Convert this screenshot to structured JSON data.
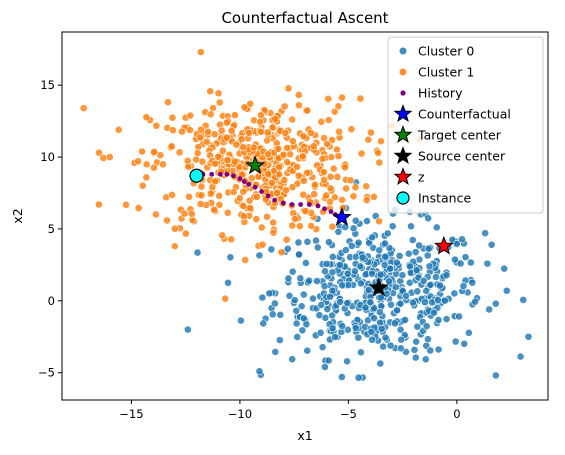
{
  "chart_data": {
    "type": "scatter",
    "title": "Counterfactual Ascent",
    "xlabel": "x1",
    "ylabel": "x2",
    "xlim": [
      -18.2,
      4.2
    ],
    "ylim": [
      -6.9,
      18.7
    ],
    "xticks": [
      -15,
      -10,
      -5,
      0
    ],
    "yticks": [
      -5,
      0,
      5,
      10,
      15
    ],
    "grid": false,
    "legend_position": "top-right",
    "series": [
      {
        "name": "Cluster 0",
        "kind": "cloud",
        "color": "#1f77b4",
        "center": [
          -3.6,
          0.7
        ],
        "spread": [
          2.4,
          2.3
        ],
        "count": 500,
        "outliers": [
          [
            -12.4,
            -2.0
          ],
          [
            -9.1,
            -4.9
          ],
          [
            3.3,
            -2.5
          ],
          [
            2.3,
            0.7
          ],
          [
            1.6,
            3.9
          ],
          [
            -5.3,
            -5.3
          ]
        ]
      },
      {
        "name": "Cluster 1",
        "kind": "cloud",
        "color": "#ff7f0e",
        "center": [
          -9.3,
          9.4
        ],
        "spread": [
          2.4,
          2.3
        ],
        "count": 500,
        "outliers": [
          [
            -17.2,
            13.4
          ],
          [
            -16.5,
            6.7
          ],
          [
            -16.0,
            10.0
          ],
          [
            -11.8,
            17.3
          ],
          [
            -13.0,
            3.8
          ],
          [
            -3.5,
            11.1
          ]
        ]
      },
      {
        "name": "History",
        "kind": "path",
        "color": "#800080",
        "points": [
          [
            -12.1,
            8.8
          ],
          [
            -11.7,
            8.8
          ],
          [
            -11.3,
            8.8
          ],
          [
            -10.9,
            8.8
          ],
          [
            -10.6,
            8.8
          ],
          [
            -10.3,
            8.7
          ],
          [
            -10.0,
            8.5
          ],
          [
            -9.8,
            8.3
          ],
          [
            -9.6,
            8.1
          ],
          [
            -9.3,
            7.9
          ],
          [
            -9.0,
            7.6
          ],
          [
            -8.7,
            7.3
          ],
          [
            -8.4,
            7.0
          ],
          [
            -8.0,
            6.8
          ],
          [
            -7.6,
            6.7
          ],
          [
            -7.2,
            6.7
          ],
          [
            -6.8,
            6.7
          ],
          [
            -6.4,
            6.6
          ],
          [
            -6.1,
            6.4
          ],
          [
            -5.8,
            6.2
          ],
          [
            -5.6,
            6.0
          ],
          [
            -5.4,
            5.8
          ]
        ]
      },
      {
        "name": "Counterfactual",
        "kind": "star",
        "color": "#0000ff",
        "points": [
          [
            -5.3,
            5.8
          ]
        ]
      },
      {
        "name": "Target center",
        "kind": "star",
        "color": "#008000",
        "points": [
          [
            -9.3,
            9.4
          ]
        ]
      },
      {
        "name": "Source center",
        "kind": "star",
        "color": "#000000",
        "points": [
          [
            -3.6,
            0.9
          ]
        ]
      },
      {
        "name": "z",
        "kind": "star",
        "color": "#ff0000",
        "points": [
          [
            -0.6,
            3.8
          ]
        ]
      },
      {
        "name": "Instance",
        "kind": "circle",
        "color": "#00ffff",
        "points": [
          [
            -12.0,
            8.7
          ]
        ]
      }
    ]
  }
}
